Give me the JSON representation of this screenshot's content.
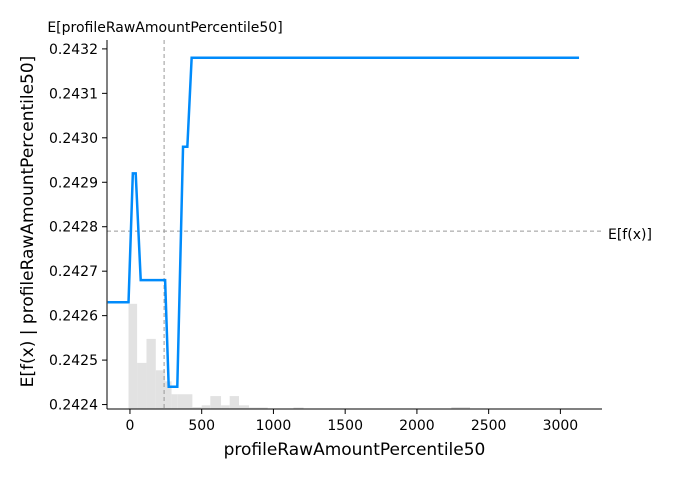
{
  "chart_data": {
    "type": "line",
    "title": "",
    "top_label": "E[profileRawAmountPercentile50]",
    "xlabel": "profileRawAmountPercentile50",
    "ylabel": "E[f(x) | profileRawAmountPercentile50]",
    "xlim": [
      -160,
      3290
    ],
    "ylim": [
      0.24239,
      0.24322
    ],
    "x_ticks": [
      0,
      500,
      1000,
      1500,
      2000,
      2500,
      3000
    ],
    "x_tick_labels": [
      "0",
      "500",
      "1000",
      "1500",
      "2000",
      "2500",
      "3000"
    ],
    "y_ticks": [
      0.2424,
      0.2425,
      0.2426,
      0.2427,
      0.2428,
      0.2429,
      0.243,
      0.2431,
      0.2432
    ],
    "y_tick_labels": [
      "0.2424",
      "0.2425",
      "0.2426",
      "0.2427",
      "0.2428",
      "0.2429",
      "0.2430",
      "0.2431",
      "0.2432"
    ],
    "expected_feature_value": 238,
    "expected_output": 0.24279,
    "expected_output_label": "E[f(x)]",
    "grid": false,
    "line_color": "#008bfb",
    "hist_color": "#e2e2e2",
    "ref_line_color": "#999999",
    "series": [
      {
        "x": [
          -155,
          -10,
          20,
          40,
          75,
          100,
          245,
          270,
          330,
          370,
          400,
          430,
          445,
          3130
        ],
        "values": [
          0.24263,
          0.24263,
          0.24292,
          0.24292,
          0.24268,
          0.24268,
          0.24268,
          0.24244,
          0.24244,
          0.24298,
          0.24298,
          0.24318,
          0.24318,
          0.24318
        ]
      }
    ],
    "histogram": {
      "bins": [
        [
          -10,
          50,
          0.57
        ],
        [
          50,
          115,
          0.25
        ],
        [
          115,
          180,
          0.38
        ],
        [
          180,
          245,
          0.21
        ],
        [
          245,
          290,
          0.15
        ],
        [
          290,
          330,
          0.08
        ],
        [
          330,
          435,
          0.08
        ],
        [
          435,
          500,
          0.01
        ],
        [
          500,
          560,
          0.02
        ],
        [
          560,
          635,
          0.07
        ],
        [
          635,
          695,
          0.02
        ],
        [
          695,
          760,
          0.07
        ],
        [
          760,
          830,
          0.02
        ],
        [
          830,
          960,
          0.008
        ],
        [
          1140,
          1210,
          0.008
        ],
        [
          2240,
          2370,
          0.01
        ]
      ]
    }
  }
}
